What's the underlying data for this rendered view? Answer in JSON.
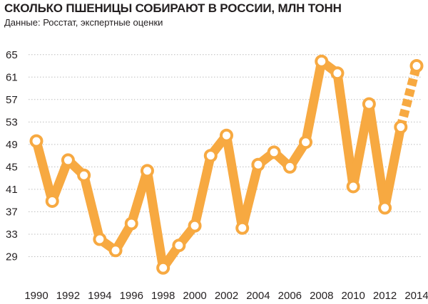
{
  "chart_data": {
    "type": "line",
    "title": "СКОЛЬКО ПШЕНИЦЫ СОБИРАЮТ В РОССИИ, МЛН ТОНН",
    "subtitle": "Данные: Росстат, экспертные оценки",
    "xlabel": "",
    "ylabel": "",
    "x": [
      1990,
      1991,
      1992,
      1993,
      1994,
      1995,
      1996,
      1997,
      1998,
      1999,
      2000,
      2001,
      2002,
      2003,
      2004,
      2005,
      2006,
      2007,
      2008,
      2009,
      2010,
      2011,
      2012,
      2013,
      2014
    ],
    "series": [
      {
        "values": [
          49.6,
          38.9,
          46.2,
          43.5,
          32.1,
          30.1,
          34.9,
          44.3,
          27.0,
          31.0,
          34.5,
          47.0,
          50.6,
          34.1,
          45.4,
          47.6,
          45.0,
          49.4,
          63.8,
          61.7,
          41.5,
          56.2,
          37.7,
          52.1,
          63.0
        ],
        "estimated_from_index": 23
      }
    ],
    "ylim": [
      25,
      67
    ],
    "yticks": [
      29,
      33,
      37,
      41,
      45,
      49,
      53,
      57,
      61,
      65
    ],
    "xticks": [
      1990,
      1992,
      1994,
      1996,
      1998,
      2000,
      2002,
      2004,
      2006,
      2008,
      2010,
      2012,
      2014
    ],
    "grid": "horizontal",
    "colors": {
      "line": "#f7a941",
      "marker_fill": "#ffffff",
      "grid": "#bdbdbd",
      "text": "#231f20"
    }
  }
}
